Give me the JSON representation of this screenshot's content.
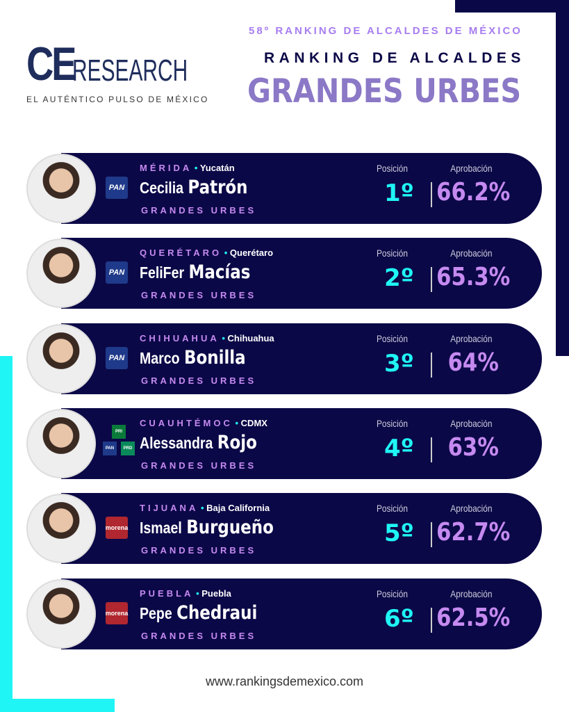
{
  "header": {
    "logo_ce": "CE",
    "logo_rest": "RESEARCH",
    "tagline": "EL AUTÉNTICO PULSO DE MÉXICO",
    "edition": "58º RANKING DE ALCALDES DE MÉXICO",
    "title": "RANKING DE ALCALDES",
    "subtitle": "GRANDES URBES"
  },
  "labels": {
    "position": "Posición",
    "approval": "Aprobación"
  },
  "colors": {
    "navy": "#0b0847",
    "cyan": "#1ff5f5",
    "purple": "#c58af0",
    "title_purple": "#8b78c6"
  },
  "mayors": [
    {
      "city": "MÉRIDA",
      "state": "Yucatán",
      "first": "Cecilia",
      "last": "Patrón",
      "category": "GRANDES URBES",
      "position": "1º",
      "approval": "66.2%",
      "party": "PAN"
    },
    {
      "city": "QUERÉTARO",
      "state": "Querétaro",
      "first": "FeliFer",
      "last": "Macías",
      "category": "GRANDES URBES",
      "position": "2º",
      "approval": "65.3%",
      "party": "PAN"
    },
    {
      "city": "CHIHUAHUA",
      "state": "Chihuahua",
      "first": "Marco",
      "last": "Bonilla",
      "category": "GRANDES URBES",
      "position": "3º",
      "approval": "64%",
      "party": "PAN"
    },
    {
      "city": "CUAUHTÉMOC",
      "state": "CDMX",
      "first": "Alessandra",
      "last": "Rojo",
      "category": "GRANDES URBES",
      "position": "4º",
      "approval": "63%",
      "party": "PRI-PAN-PRD"
    },
    {
      "city": "TIJUANA",
      "state": "Baja California",
      "first": "Ismael",
      "last": "Burgueño",
      "category": "GRANDES URBES",
      "position": "5º",
      "approval": "62.7%",
      "party": "morena"
    },
    {
      "city": "PUEBLA",
      "state": "Puebla",
      "first": "Pepe",
      "last": "Chedraui",
      "category": "GRANDES URBES",
      "position": "6º",
      "approval": "62.5%",
      "party": "morena"
    }
  ],
  "footer": {
    "url": "www.rankingsdemexico.com"
  }
}
